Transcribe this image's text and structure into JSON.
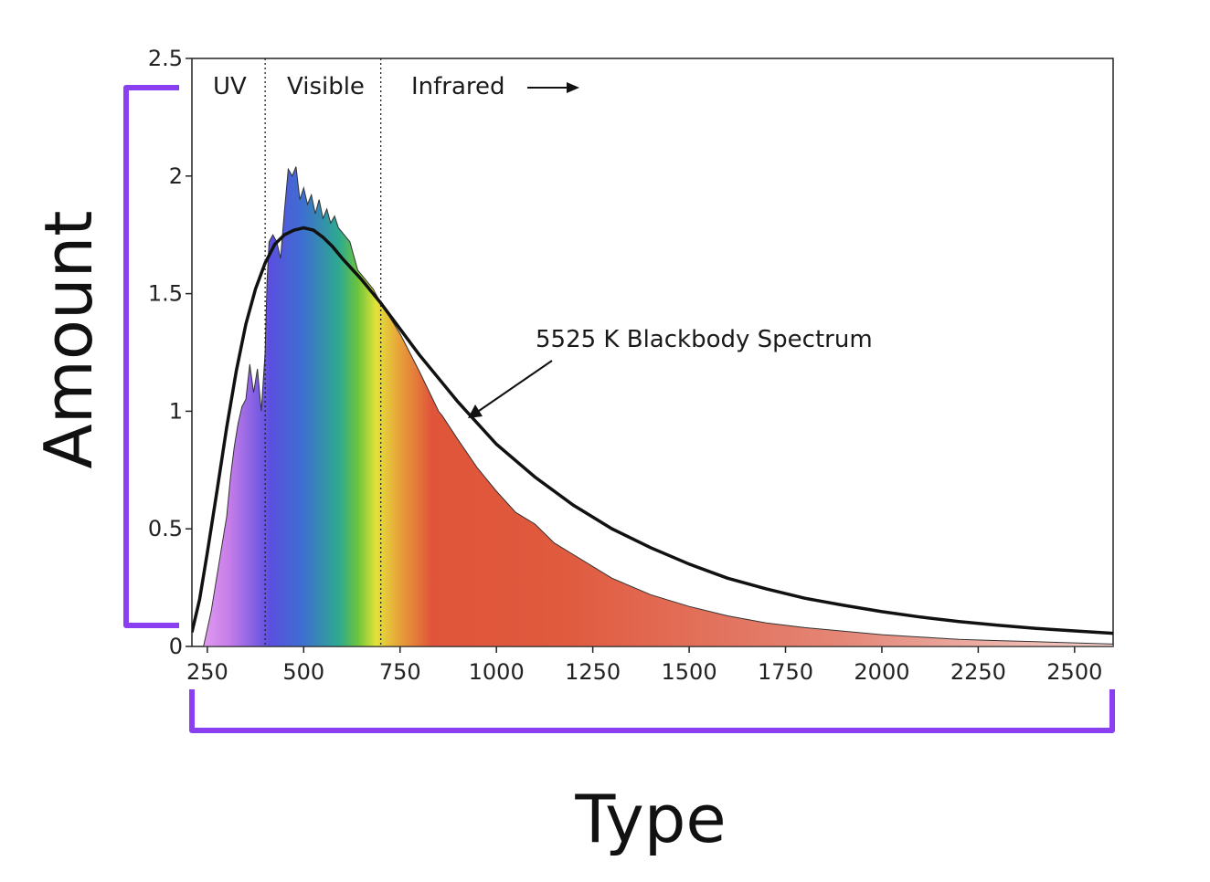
{
  "chart_data": {
    "type": "area",
    "xlim": [
      210,
      2600
    ],
    "ylim": [
      0,
      2.5
    ],
    "x_ticks": [
      250,
      500,
      750,
      1000,
      1250,
      1500,
      1750,
      2000,
      2250,
      2500
    ],
    "y_ticks": [
      0,
      0.5,
      1,
      1.5,
      2,
      2.5
    ],
    "y_tick_labels": [
      "0",
      "0.5",
      "1",
      "1.5",
      "2",
      "2.5"
    ],
    "xlabel": "Type",
    "ylabel": "Amount",
    "regions": [
      {
        "label": "UV",
        "x_start": 210,
        "x_end": 400
      },
      {
        "label": "Visible",
        "x_start": 400,
        "x_end": 700
      },
      {
        "label": "Infrared",
        "x_start": 700,
        "x_end": 2600
      }
    ],
    "region_boundaries": [
      400,
      700
    ],
    "series": [
      {
        "kind": "spectrum",
        "x": [
          240,
          260,
          280,
          295,
          300,
          310,
          320,
          330,
          340,
          350,
          360,
          370,
          380,
          390,
          400,
          405,
          410,
          420,
          430,
          440,
          450,
          460,
          470,
          480,
          490,
          500,
          510,
          520,
          530,
          540,
          550,
          560,
          570,
          580,
          590,
          600,
          620,
          640,
          660,
          680,
          700,
          750,
          800,
          850,
          860,
          900,
          950,
          1000,
          1050,
          1100,
          1150,
          1200,
          1250,
          1300,
          1400,
          1500,
          1600,
          1700,
          1800,
          1900,
          2000,
          2100,
          2200,
          2300,
          2400,
          2500,
          2600
        ],
        "y": [
          0.0,
          0.15,
          0.35,
          0.5,
          0.55,
          0.72,
          0.85,
          0.95,
          1.02,
          1.05,
          1.2,
          1.08,
          1.18,
          1.0,
          1.25,
          1.55,
          1.72,
          1.75,
          1.72,
          1.65,
          1.85,
          2.03,
          2.0,
          2.04,
          1.9,
          1.95,
          1.88,
          1.92,
          1.84,
          1.9,
          1.82,
          1.86,
          1.8,
          1.83,
          1.78,
          1.76,
          1.72,
          1.6,
          1.56,
          1.52,
          1.46,
          1.33,
          1.17,
          1.0,
          0.98,
          0.88,
          0.76,
          0.66,
          0.57,
          0.52,
          0.44,
          0.39,
          0.34,
          0.29,
          0.22,
          0.17,
          0.13,
          0.1,
          0.08,
          0.065,
          0.05,
          0.04,
          0.03,
          0.025,
          0.02,
          0.015,
          0.01
        ]
      },
      {
        "kind": "blackbody",
        "name": "5525 K Blackbody Spectrum",
        "x": [
          210,
          230,
          250,
          275,
          300,
          325,
          350,
          375,
          400,
          425,
          450,
          475,
          500,
          525,
          550,
          575,
          600,
          650,
          700,
          750,
          800,
          850,
          900,
          950,
          1000,
          1100,
          1200,
          1300,
          1400,
          1500,
          1600,
          1700,
          1800,
          1900,
          2000,
          2100,
          2200,
          2300,
          2400,
          2500,
          2600
        ],
        "y": [
          0.06,
          0.2,
          0.4,
          0.66,
          0.93,
          1.17,
          1.37,
          1.52,
          1.63,
          1.71,
          1.75,
          1.77,
          1.78,
          1.77,
          1.74,
          1.7,
          1.65,
          1.56,
          1.46,
          1.35,
          1.24,
          1.14,
          1.04,
          0.95,
          0.86,
          0.72,
          0.6,
          0.5,
          0.42,
          0.35,
          0.29,
          0.245,
          0.205,
          0.175,
          0.148,
          0.125,
          0.106,
          0.09,
          0.077,
          0.066,
          0.056
        ]
      }
    ],
    "annotation": {
      "text": "5525 K Blackbody Spectrum",
      "points_to_x": 900,
      "points_to_y": 0.98
    }
  },
  "colors": {
    "bracket": "#8a3ff0",
    "axis": "#222222",
    "blackbody": "#111111"
  }
}
